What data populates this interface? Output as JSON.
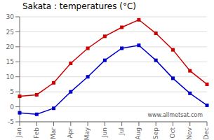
{
  "chart_data": {
    "type": "line",
    "title": "Sakata : temperatures (°C)",
    "categories": [
      "Jan",
      "Feb",
      "Mar",
      "Apr",
      "May",
      "Jun",
      "Jul",
      "Aug",
      "Sep",
      "Oct",
      "Nov",
      "Dec"
    ],
    "series": [
      {
        "color": "#cc0000",
        "marker": "square",
        "values": [
          3.5,
          4.0,
          8.0,
          14.5,
          19.5,
          23.5,
          26.5,
          29.0,
          24.5,
          19.0,
          12.0,
          7.5
        ]
      },
      {
        "color": "#0000cc",
        "marker": "square",
        "values": [
          -2.0,
          -2.5,
          -0.5,
          5.0,
          10.0,
          15.5,
          19.5,
          20.5,
          15.5,
          9.5,
          4.5,
          0.5
        ]
      }
    ],
    "ylim": [
      -5,
      30
    ],
    "yticks": [
      -5,
      0,
      5,
      10,
      15,
      20,
      25,
      30
    ],
    "grid": true,
    "annotations": [
      "www.allmetsat.com"
    ]
  }
}
